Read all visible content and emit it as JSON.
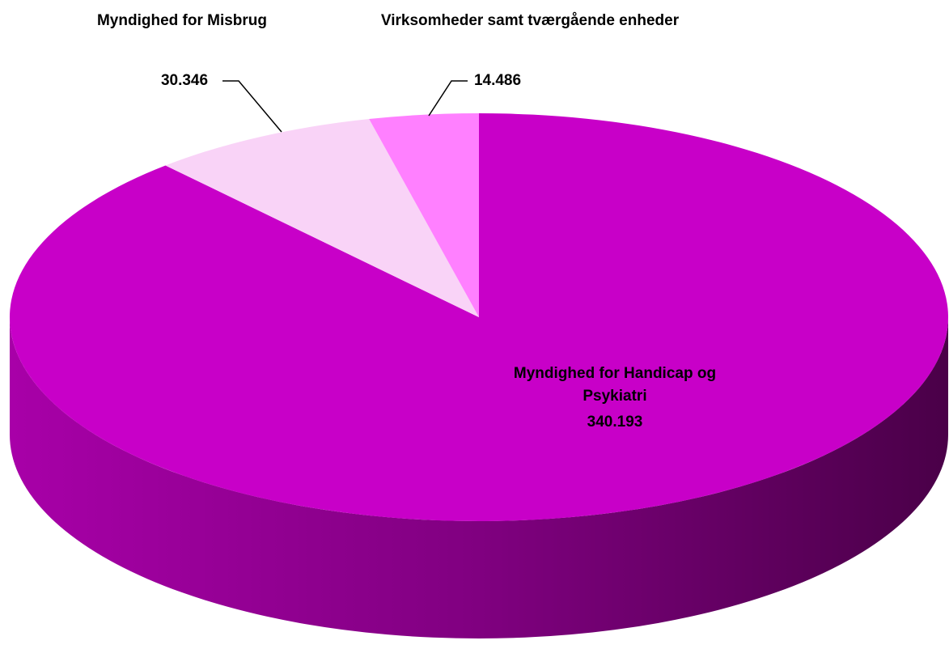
{
  "chart_data": {
    "type": "pie",
    "three_d": true,
    "categories": [
      "Myndighed for Handicap og Psykiatri",
      "Myndighed for Misbrug",
      "Virksomheder samt tværgående enheder"
    ],
    "values": [
      340193,
      30346,
      14486
    ],
    "value_labels": [
      "340.193",
      "30.346",
      "14.486"
    ],
    "colors": [
      "#c800c8",
      "#f9d3f7",
      "#ff80ff"
    ]
  }
}
